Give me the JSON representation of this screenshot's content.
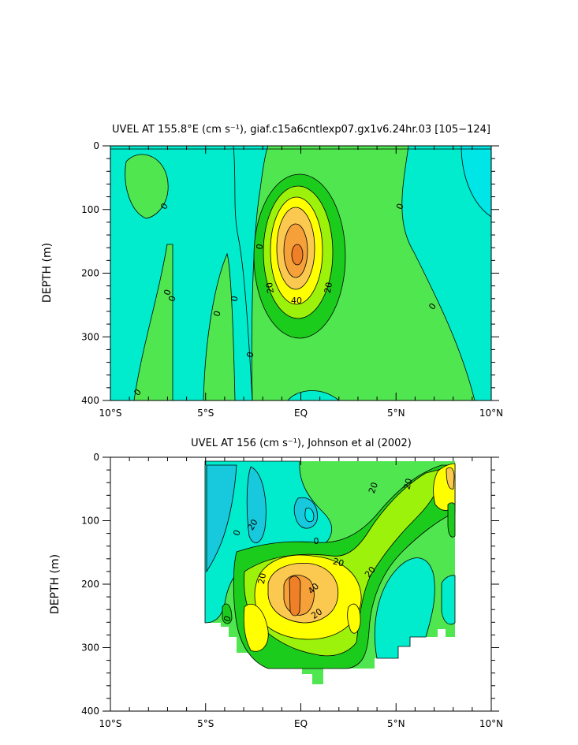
{
  "chart_data": [
    {
      "type": "heatmap",
      "title": "UVEL AT 155.8°E (cm s⁻¹), giaf.c15a6cntlexp07.gx1v6.24hr.03 [105−124]",
      "ylabel": "DEPTH (m)",
      "xlim": [
        -10,
        10
      ],
      "ylim": [
        400,
        0
      ],
      "x_ticks": [
        -10,
        -5,
        0,
        5,
        10
      ],
      "x_tick_labels": [
        "10°S",
        "5°S",
        "EQ",
        "5°N",
        "10°N"
      ],
      "y_ticks": [
        0,
        100,
        200,
        300,
        400
      ],
      "y_tick_labels": [
        "0",
        "100",
        "200",
        "300",
        "400"
      ],
      "contour_levels": [
        -20,
        -10,
        0,
        10,
        20,
        30,
        40,
        50,
        60
      ],
      "contour_labels": [
        "0",
        "0",
        "0",
        "0",
        "0",
        "0",
        "0",
        "0",
        "0",
        "20",
        "40",
        "20"
      ],
      "core": {
        "lon": -0.2,
        "depth": 175,
        "value": 60
      }
    },
    {
      "type": "heatmap",
      "title": "UVEL AT 156 (cm s⁻¹), Johnson et al (2002)",
      "ylabel": "DEPTH (m)",
      "xlim": [
        -10,
        10
      ],
      "ylim": [
        400,
        0
      ],
      "x_ticks": [
        -10,
        -5,
        0,
        5,
        10
      ],
      "x_tick_labels": [
        "10°S",
        "5°S",
        "EQ",
        "5°N",
        "10°N"
      ],
      "y_ticks": [
        0,
        100,
        200,
        300,
        400
      ],
      "y_tick_labels": [
        "0",
        "100",
        "200",
        "300",
        "400"
      ],
      "data_extent": {
        "lon": [
          -5,
          8
        ],
        "depth": [
          0,
          350
        ]
      },
      "contour_levels": [
        -20,
        -10,
        0,
        10,
        20,
        30,
        40,
        50
      ],
      "contour_labels": [
        "20",
        "20",
        "20",
        "0",
        "20",
        "20",
        "20",
        "40",
        "20",
        "0",
        "0"
      ],
      "core": {
        "lon": -0.2,
        "depth": 200,
        "value": 50
      }
    }
  ],
  "colors": {
    "neg20": "#00e5e5",
    "neg10": "#18c8dc",
    "zero_minus": "#00eccc",
    "zero_plus": "#50e650",
    "pos10": "#1ccc1c",
    "pos20": "#9cf20a",
    "pos30": "#ffff00",
    "pos40": "#fbc850",
    "pos50": "#f5a039",
    "pos60": "#f08028"
  }
}
